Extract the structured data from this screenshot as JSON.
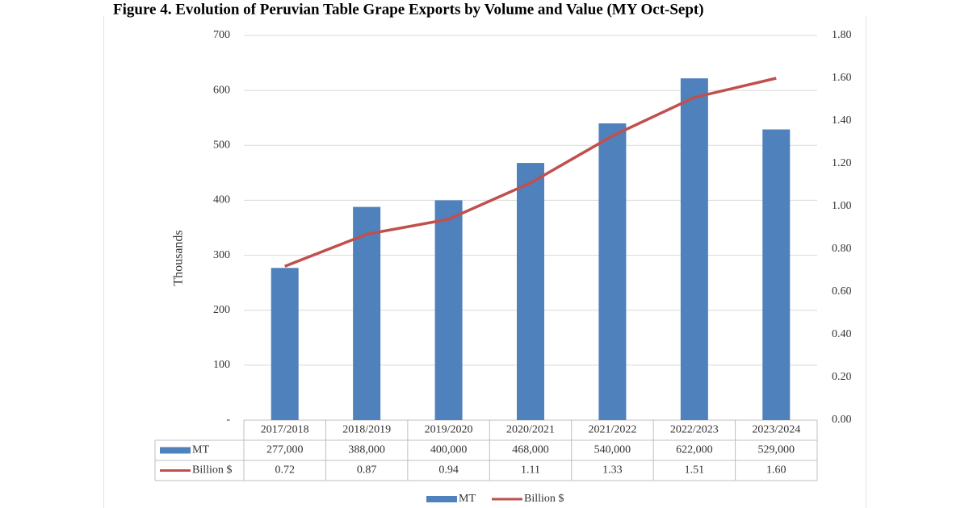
{
  "chart_data": {
    "type": "bar-line",
    "title": "Figure 4. Evolution of Peruvian Table Grape Exports by Volume and Value (MY Oct-Sept)",
    "y_label": "Thousands",
    "categories": [
      "2017/2018",
      "2018/2019",
      "2019/2020",
      "2020/2021",
      "2021/2022",
      "2022/2023",
      "2023/2024"
    ],
    "series": [
      {
        "name": "MT",
        "type": "bar",
        "color": "#4f81bd",
        "values": [
          277,
          388,
          400,
          468,
          540,
          622,
          529
        ],
        "value_labels": [
          "277,000",
          "388,000",
          "400,000",
          "468,000",
          "540,000",
          "622,000",
          "529,000"
        ]
      },
      {
        "name": "Billion $",
        "type": "line",
        "axis": "y2",
        "color": "#c0504d",
        "values": [
          0.72,
          0.87,
          0.94,
          1.11,
          1.33,
          1.51,
          1.6
        ],
        "value_labels": [
          "0.72",
          "0.87",
          "0.94",
          "1.11",
          "1.33",
          "1.51",
          "1.60"
        ]
      }
    ],
    "ylim": [
      0,
      700
    ],
    "yticks": [
      {
        "value": 0,
        "label": "-"
      },
      100,
      200,
      300,
      400,
      500,
      600,
      700
    ],
    "y2lim": [
      0,
      1.8
    ],
    "y2ticks": [
      {
        "value": 0,
        "label": "0.00"
      },
      {
        "value": 0.2,
        "label": "0.20"
      },
      {
        "value": 0.4,
        "label": "0.40"
      },
      {
        "value": 0.6,
        "label": "0.60"
      },
      {
        "value": 0.8,
        "label": "0.80"
      },
      {
        "value": 1,
        "label": "1.00"
      },
      {
        "value": 1.2,
        "label": "1.20"
      },
      {
        "value": 1.4,
        "label": "1.40"
      },
      {
        "value": 1.6,
        "label": "1.60"
      },
      {
        "value": 1.8,
        "label": "1.80"
      }
    ],
    "grid": true,
    "legend": "bottom"
  }
}
